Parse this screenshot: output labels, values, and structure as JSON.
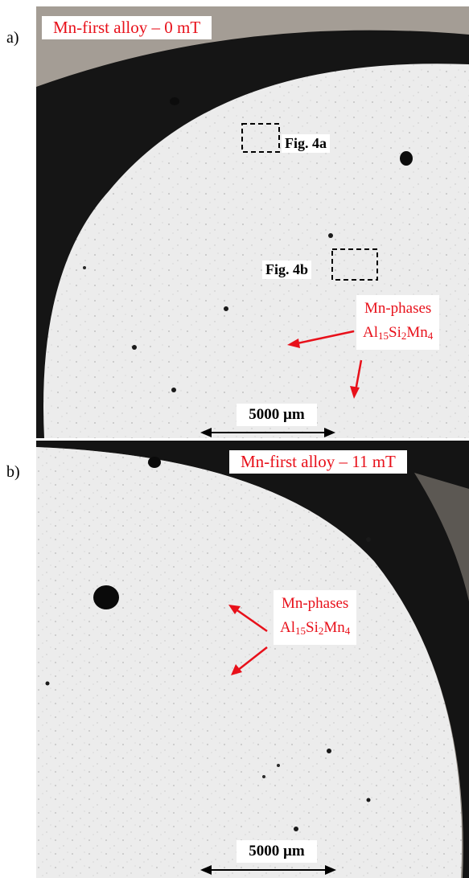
{
  "panel_a": {
    "letter": "a)",
    "title": "Mn-first alloy – 0 mT",
    "fig4a": "Fig. 4a",
    "fig4b": "Fig. 4b",
    "phase_label": "Mn-phases",
    "phase_formula": {
      "al": "Al",
      "n15": "15",
      "si": "Si",
      "n2": "2",
      "mn": "Mn",
      "n4": "4"
    },
    "scale": "5000 µm"
  },
  "panel_b": {
    "letter": "b)",
    "title": "Mn-first alloy – 11 mT",
    "phase_label": "Mn-phases",
    "phase_formula": {
      "al": "Al",
      "n15": "15",
      "si": "Si",
      "n2": "2",
      "mn": "Mn",
      "n4": "4"
    },
    "scale": "5000 µm"
  },
  "colors": {
    "annotation_red": "#e8101a",
    "sample_gray": "#ececec",
    "resin_dark": "#1a1a1a"
  }
}
